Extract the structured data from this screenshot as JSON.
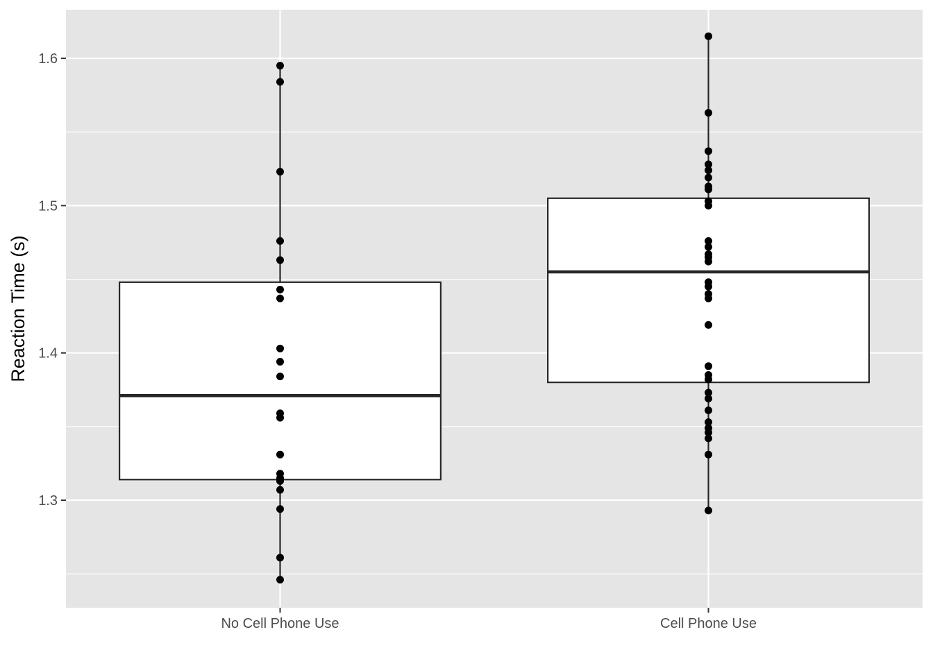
{
  "chart_data": {
    "type": "boxplot",
    "title": "",
    "xlabel": "",
    "ylabel": "Reaction Time (s)",
    "ylim": [
      1.227,
      1.633
    ],
    "yticks": [
      "1.3",
      "1.4",
      "1.5",
      "1.6"
    ],
    "y_minor": [
      1.25,
      1.35,
      1.45,
      1.55
    ],
    "grid": true,
    "legend": "none",
    "colors": {
      "panel": "#e5e5e5",
      "grid": "#ffffff",
      "box_fill": "#ffffff",
      "stroke": "#262626",
      "point": "#000000",
      "tick_text": "#4d4d4d"
    },
    "categories": [
      "No Cell Phone Use",
      "Cell Phone Use"
    ],
    "groups": [
      {
        "name": "No Cell Phone Use",
        "box": {
          "q1": 1.314,
          "median": 1.371,
          "q3": 1.448,
          "whisker_low": 1.246,
          "whisker_high": 1.595
        },
        "points": [
          1.595,
          1.584,
          1.523,
          1.476,
          1.463,
          1.443,
          1.437,
          1.403,
          1.394,
          1.384,
          1.359,
          1.356,
          1.331,
          1.318,
          1.315,
          1.313,
          1.307,
          1.294,
          1.261,
          1.246
        ]
      },
      {
        "name": "Cell Phone Use",
        "box": {
          "q1": 1.38,
          "median": 1.455,
          "q3": 1.505,
          "whisker_low": 1.293,
          "whisker_high": 1.615
        },
        "points": [
          1.615,
          1.563,
          1.537,
          1.528,
          1.524,
          1.519,
          1.513,
          1.511,
          1.503,
          1.5,
          1.476,
          1.472,
          1.467,
          1.465,
          1.462,
          1.448,
          1.445,
          1.44,
          1.437,
          1.419,
          1.391,
          1.385,
          1.382,
          1.373,
          1.369,
          1.361,
          1.353,
          1.349,
          1.346,
          1.342,
          1.331,
          1.293
        ]
      }
    ]
  }
}
